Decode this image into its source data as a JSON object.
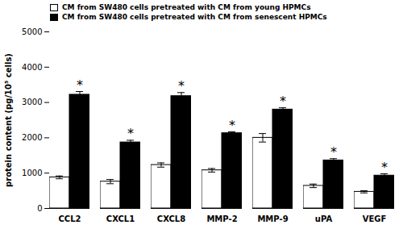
{
  "chart_data": {
    "type": "bar",
    "categories": [
      "CCL2",
      "CXCL1",
      "CXCL8",
      "MMP-2",
      "MMP-9",
      "uPA",
      "VEGF"
    ],
    "series": [
      {
        "name": "CM from SW480 cells pretreated with CM from young HPMCs",
        "color": "#ffffff",
        "values": [
          880,
          760,
          1230,
          1080,
          2000,
          640,
          470
        ],
        "errors": [
          40,
          60,
          60,
          50,
          120,
          50,
          30
        ]
      },
      {
        "name": "CM from SW480 cells pretreated with CM from senescent HPMCs",
        "color": "#000000",
        "values": [
          3220,
          1870,
          3180,
          2130,
          2800,
          1360,
          930
        ],
        "errors": [
          90,
          60,
          100,
          40,
          50,
          50,
          50
        ]
      }
    ],
    "ylabel": "protein content (pg/10⁵ cells)",
    "ylim": [
      0,
      5000
    ],
    "yticks": [
      0,
      1000,
      2000,
      3000,
      4000,
      5000
    ],
    "grid": false,
    "legend": "upper left",
    "annotations": [
      {
        "text": "*",
        "category": "CCL2",
        "series": "CM from SW480 cells pretreated with CM from senescent HPMCs"
      },
      {
        "text": "*",
        "category": "CXCL1",
        "series": "CM from SW480 cells pretreated with CM from senescent HPMCs"
      },
      {
        "text": "*",
        "category": "CXCL8",
        "series": "CM from SW480 cells pretreated with CM from senescent HPMCs"
      },
      {
        "text": "*",
        "category": "MMP-2",
        "series": "CM from SW480 cells pretreated with CM from senescent HPMCs"
      },
      {
        "text": "*",
        "category": "MMP-9",
        "series": "CM from SW480 cells pretreated with CM from senescent HPMCs"
      },
      {
        "text": "*",
        "category": "uPA",
        "series": "CM from SW480 cells pretreated with CM from senescent HPMCs"
      },
      {
        "text": "*",
        "category": "VEGF",
        "series": "CM from SW480 cells pretreated with CM from senescent HPMCs"
      }
    ]
  }
}
